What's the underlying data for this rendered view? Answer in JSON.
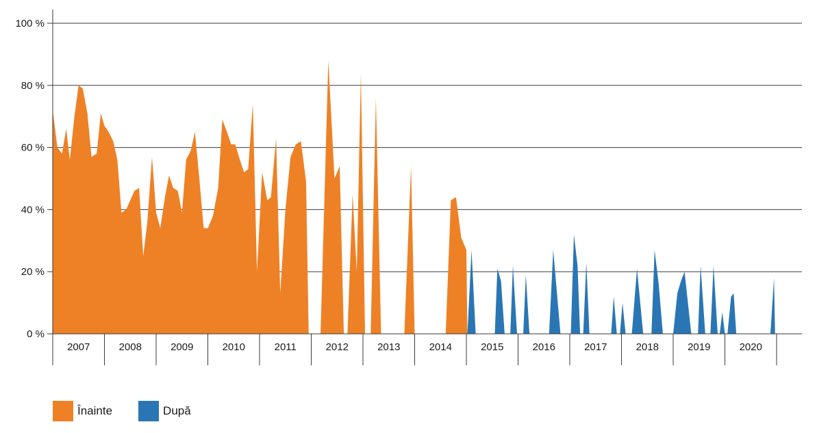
{
  "chart_data": {
    "type": "area",
    "title": "",
    "xlabel": "",
    "ylabel": "",
    "ylim": [
      0,
      100
    ],
    "yticks": [
      0,
      20,
      40,
      60,
      80,
      100
    ],
    "ytick_labels": [
      "0 %",
      "20 %",
      "40 %",
      "60 %",
      "80 %",
      "100 %"
    ],
    "year_labels": [
      "2007",
      "2008",
      "2009",
      "2010",
      "2011",
      "2012",
      "2013",
      "2014",
      "2015",
      "2016",
      "2017",
      "2018",
      "2019",
      "2020"
    ],
    "x_start": 2007.0,
    "x_end": 2021.0,
    "grid": true,
    "legend_position": "bottom-left",
    "series": [
      {
        "name": "Înainte",
        "color": "#ee8125",
        "segments": [
          [
            [
              2007.0,
              72
            ],
            [
              2007.09,
              60
            ],
            [
              2007.18,
              58
            ],
            [
              2007.26,
              66
            ],
            [
              2007.33,
              56
            ],
            [
              2007.42,
              70
            ],
            [
              2007.5,
              80
            ],
            [
              2007.58,
              79
            ],
            [
              2007.67,
              71
            ],
            [
              2007.75,
              57
            ],
            [
              2007.85,
              58
            ],
            [
              2007.93,
              71
            ],
            [
              2008.0,
              67
            ],
            [
              2008.08,
              65
            ],
            [
              2008.17,
              62
            ],
            [
              2008.25,
              56
            ],
            [
              2008.33,
              39
            ],
            [
              2008.42,
              40
            ],
            [
              2008.5,
              43
            ],
            [
              2008.58,
              46
            ],
            [
              2008.67,
              47
            ],
            [
              2008.75,
              25
            ],
            [
              2008.83,
              36
            ],
            [
              2008.92,
              57
            ],
            [
              2009.0,
              39
            ],
            [
              2009.08,
              34
            ],
            [
              2009.17,
              44
            ],
            [
              2009.25,
              51
            ],
            [
              2009.33,
              47
            ],
            [
              2009.42,
              46
            ],
            [
              2009.5,
              39
            ],
            [
              2009.58,
              56
            ],
            [
              2009.67,
              59
            ],
            [
              2009.75,
              65
            ],
            [
              2009.83,
              51
            ],
            [
              2009.92,
              34
            ],
            [
              2010.0,
              34
            ],
            [
              2010.1,
              38
            ],
            [
              2010.2,
              47
            ],
            [
              2010.28,
              69
            ],
            [
              2010.37,
              65
            ],
            [
              2010.45,
              61
            ],
            [
              2010.53,
              61
            ],
            [
              2010.62,
              56
            ],
            [
              2010.7,
              52
            ],
            [
              2010.78,
              53
            ],
            [
              2010.87,
              74
            ],
            [
              2010.95,
              20
            ],
            [
              2011.05,
              52
            ],
            [
              2011.15,
              43
            ],
            [
              2011.22,
              44
            ],
            [
              2011.32,
              63
            ],
            [
              2011.4,
              13
            ],
            [
              2011.5,
              40
            ],
            [
              2011.6,
              57
            ],
            [
              2011.7,
              61
            ],
            [
              2011.8,
              62
            ],
            [
              2011.9,
              49
            ],
            [
              2011.95,
              0
            ]
          ],
          [
            [
              2012.18,
              0
            ],
            [
              2012.33,
              88
            ],
            [
              2012.45,
              50
            ],
            [
              2012.55,
              54
            ],
            [
              2012.63,
              0
            ]
          ],
          [
            [
              2012.7,
              0
            ],
            [
              2012.8,
              45
            ],
            [
              2012.88,
              20
            ],
            [
              2012.96,
              84
            ],
            [
              2013.04,
              0
            ]
          ],
          [
            [
              2013.15,
              0
            ],
            [
              2013.25,
              76
            ],
            [
              2013.35,
              0
            ]
          ],
          [
            [
              2013.8,
              0
            ],
            [
              2013.93,
              54
            ],
            [
              2014.0,
              0
            ]
          ],
          [
            [
              2014.6,
              0
            ],
            [
              2014.7,
              43
            ],
            [
              2014.8,
              44
            ],
            [
              2014.9,
              31
            ],
            [
              2015.0,
              27
            ],
            [
              2015.02,
              0
            ]
          ]
        ]
      },
      {
        "name": "După",
        "color": "#2a76b5",
        "segments": [
          [
            [
              2015.02,
              0
            ],
            [
              2015.1,
              27
            ],
            [
              2015.18,
              0
            ]
          ],
          [
            [
              2015.55,
              0
            ],
            [
              2015.6,
              21
            ],
            [
              2015.67,
              17
            ],
            [
              2015.74,
              0
            ]
          ],
          [
            [
              2015.85,
              0
            ],
            [
              2015.9,
              22
            ],
            [
              2015.98,
              0
            ]
          ],
          [
            [
              2016.1,
              0
            ],
            [
              2016.15,
              19
            ],
            [
              2016.22,
              0
            ]
          ],
          [
            [
              2016.6,
              0
            ],
            [
              2016.68,
              27
            ],
            [
              2016.82,
              0
            ]
          ],
          [
            [
              2017.02,
              0
            ],
            [
              2017.08,
              32
            ],
            [
              2017.15,
              22
            ],
            [
              2017.2,
              0
            ]
          ],
          [
            [
              2017.26,
              0
            ],
            [
              2017.32,
              23
            ],
            [
              2017.38,
              0
            ]
          ],
          [
            [
              2017.8,
              0
            ],
            [
              2017.85,
              12
            ],
            [
              2017.91,
              0
            ]
          ],
          [
            [
              2017.97,
              0
            ],
            [
              2018.02,
              10
            ],
            [
              2018.08,
              0
            ]
          ],
          [
            [
              2018.2,
              0
            ],
            [
              2018.3,
              21
            ],
            [
              2018.42,
              0
            ]
          ],
          [
            [
              2018.58,
              0
            ],
            [
              2018.64,
              27
            ],
            [
              2018.72,
              16
            ],
            [
              2018.8,
              0
            ]
          ],
          [
            [
              2019.0,
              0
            ],
            [
              2019.08,
              13
            ],
            [
              2019.15,
              17
            ],
            [
              2019.22,
              20
            ],
            [
              2019.35,
              0
            ]
          ],
          [
            [
              2019.48,
              0
            ],
            [
              2019.53,
              22
            ],
            [
              2019.62,
              0
            ]
          ],
          [
            [
              2019.72,
              0
            ],
            [
              2019.78,
              22
            ],
            [
              2019.86,
              0
            ]
          ],
          [
            [
              2019.9,
              0
            ],
            [
              2019.95,
              7
            ],
            [
              2020.0,
              0
            ]
          ],
          [
            [
              2020.05,
              0
            ],
            [
              2020.12,
              12
            ],
            [
              2020.17,
              13
            ],
            [
              2020.22,
              0
            ]
          ],
          [
            [
              2020.88,
              0
            ],
            [
              2020.95,
              18
            ],
            [
              2020.97,
              0
            ]
          ]
        ]
      }
    ]
  }
}
